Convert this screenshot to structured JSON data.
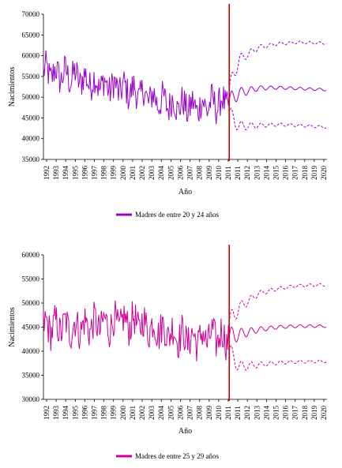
{
  "chart_data": [
    {
      "type": "line",
      "xlabel": "Año",
      "ylabel": "Nacimientos",
      "ylim": [
        35000,
        70000
      ],
      "yticks": [
        35000,
        40000,
        45000,
        50000,
        55000,
        60000,
        65000,
        70000
      ],
      "ytick_labels": [
        "35000",
        "40000",
        "45000",
        "50000",
        "55000",
        "60000",
        "65000",
        "70000"
      ],
      "xtick_labels": [
        "1992",
        "1993",
        "1994",
        "1995",
        "1996",
        "1997",
        "1998",
        "1999",
        "2000",
        "2001",
        "2002",
        "2003",
        "2004",
        "2005",
        "2006",
        "2007",
        "2008",
        "2009",
        "2010",
        "2011",
        "2011",
        "2012",
        "2013",
        "2014",
        "2015",
        "2016",
        "2017",
        "2018",
        "2019",
        "2020"
      ],
      "vline_year": 2011,
      "legend": "Madres de entre 20 y 24 años",
      "color": "#9900cc",
      "historical": {
        "start": 1992.0,
        "end": 2011.0,
        "trend_years": [
          1992,
          1995,
          1998,
          2001,
          2004,
          2007,
          2010,
          2011
        ],
        "trend_values": [
          56000,
          55000,
          53000,
          51500,
          49000,
          47500,
          48500,
          49000
        ],
        "amplitude": 4000
      },
      "projection": {
        "start": 2011.0,
        "end": 2020.9,
        "central": [
          [
            2011,
            49000
          ],
          [
            2012,
            51000
          ],
          [
            2014,
            52200
          ],
          [
            2016,
            52300
          ],
          [
            2018,
            52100
          ],
          [
            2020.9,
            51800
          ]
        ],
        "upper": [
          [
            2011,
            52000
          ],
          [
            2012,
            59000
          ],
          [
            2014,
            62000
          ],
          [
            2016,
            62900
          ],
          [
            2018,
            63200
          ],
          [
            2020.9,
            63000
          ]
        ],
        "lower": [
          [
            2011,
            46000
          ],
          [
            2012,
            43000
          ],
          [
            2014,
            43200
          ],
          [
            2016,
            43400
          ],
          [
            2018,
            43200
          ],
          [
            2020.9,
            42800
          ]
        ]
      }
    },
    {
      "type": "line",
      "xlabel": "Año",
      "ylabel": "Nacimientos",
      "ylim": [
        30000,
        60000
      ],
      "yticks": [
        30000,
        35000,
        40000,
        45000,
        50000,
        55000,
        60000
      ],
      "ytick_labels": [
        "30000",
        "35000",
        "40000",
        "45000",
        "50000",
        "55000",
        "60000"
      ],
      "xtick_labels": [
        "1992",
        "1993",
        "1994",
        "1995",
        "1996",
        "1997",
        "1998",
        "1999",
        "2000",
        "2001",
        "2002",
        "2003",
        "2004",
        "2005",
        "2006",
        "2007",
        "2008",
        "2009",
        "2010",
        "2011",
        "2011",
        "2012",
        "2013",
        "2014",
        "2015",
        "2016",
        "2017",
        "2018",
        "2019",
        "2020"
      ],
      "vline_year": 2011,
      "legend": "Madres de entre 25 y 29 años",
      "color": "#cc0099",
      "historical": {
        "start": 1992.0,
        "end": 2011.0,
        "trend_years": [
          1992,
          1995,
          1998,
          2001,
          2004,
          2007,
          2010,
          2011
        ],
        "trend_values": [
          45000,
          45000,
          45500,
          46000,
          44500,
          42500,
          43000,
          43000
        ],
        "amplitude": 3800
      },
      "projection": {
        "start": 2011.0,
        "end": 2020.9,
        "central": [
          [
            2011,
            43000
          ],
          [
            2012,
            43500
          ],
          [
            2014,
            44500
          ],
          [
            2016,
            45000
          ],
          [
            2018,
            45200
          ],
          [
            2020.9,
            45200
          ]
        ],
        "upper": [
          [
            2011,
            46000
          ],
          [
            2012,
            49000
          ],
          [
            2014,
            52000
          ],
          [
            2016,
            53000
          ],
          [
            2018,
            53600
          ],
          [
            2020.9,
            53800
          ]
        ],
        "lower": [
          [
            2011,
            40000
          ],
          [
            2012,
            36800
          ],
          [
            2014,
            37200
          ],
          [
            2016,
            37600
          ],
          [
            2018,
            37800
          ],
          [
            2020.9,
            37900
          ]
        ]
      }
    }
  ]
}
